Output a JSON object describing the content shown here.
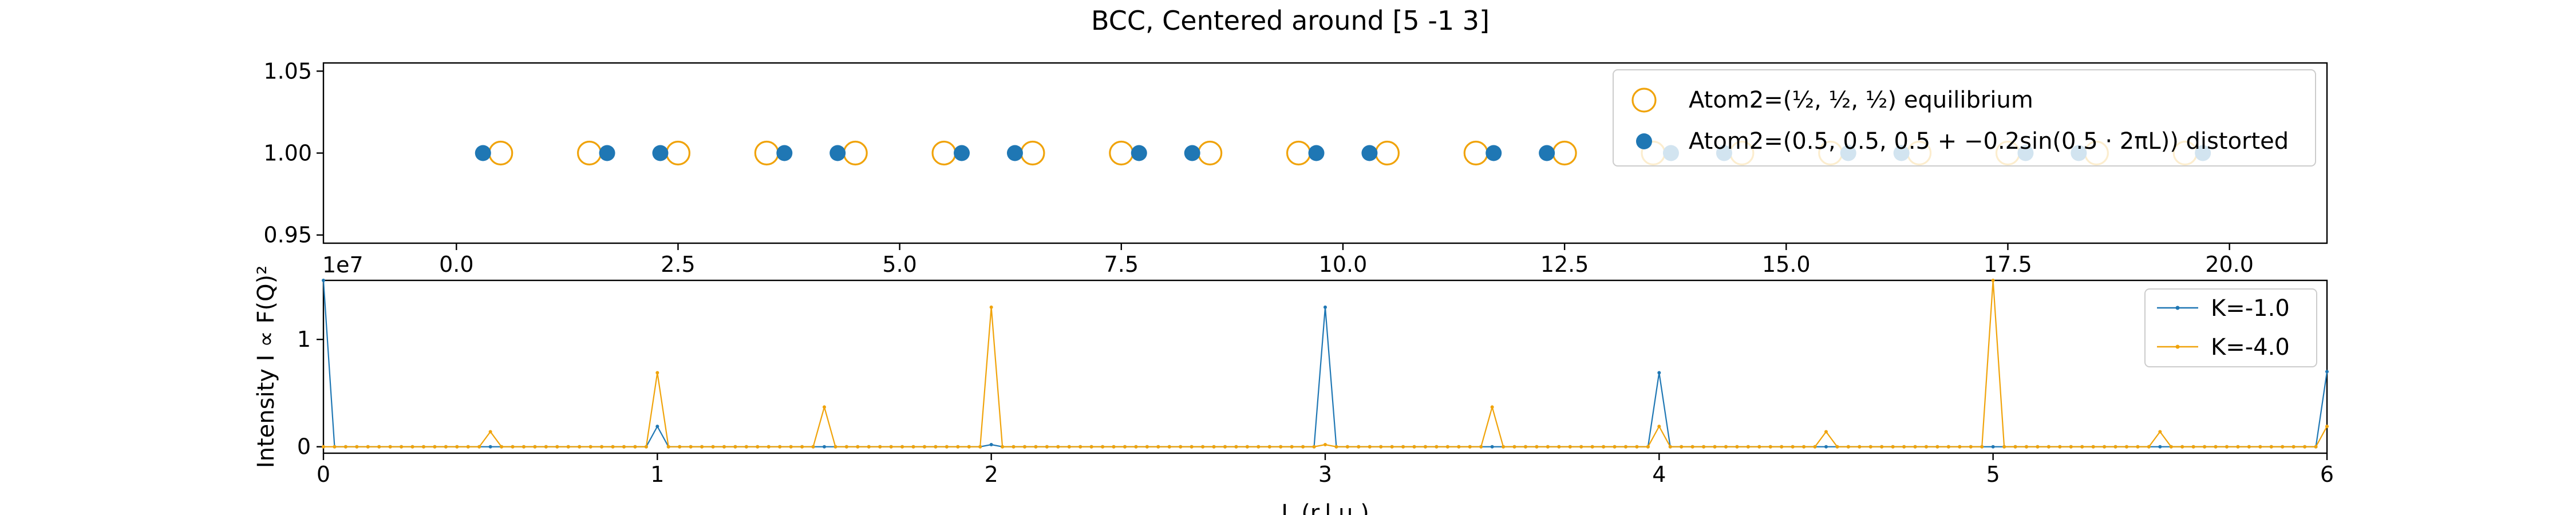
{
  "chart_data": [
    {
      "type": "scatter",
      "title": "BCC, Centered around [5 -1 3]",
      "xlabel": "",
      "ylabel": "",
      "xlim": [
        -1.5,
        21.1
      ],
      "ylim": [
        0.945,
        1.055
      ],
      "x_ticks": [
        0.0,
        2.5,
        5.0,
        7.5,
        10.0,
        12.5,
        15.0,
        17.5,
        20.0
      ],
      "x_tick_labels": [
        "0.0",
        "2.5",
        "5.0",
        "7.5",
        "10.0",
        "12.5",
        "15.0",
        "17.5",
        "20.0"
      ],
      "y_ticks": [
        0.95,
        1.0,
        1.05
      ],
      "y_tick_labels": [
        "0.95",
        "1.00",
        "1.05"
      ],
      "legend_position": "top-right",
      "series": [
        {
          "name": "Atom2=(½, ½, ½) equilibrium",
          "marker": "open-circle",
          "color": "#f0a30a",
          "x": [
            0.5,
            1.5,
            2.5,
            3.5,
            4.5,
            5.5,
            6.5,
            7.5,
            8.5,
            9.5,
            10.5,
            11.5,
            12.5,
            13.5,
            14.5,
            15.5,
            16.5,
            17.5,
            18.5,
            19.5
          ],
          "y": [
            1,
            1,
            1,
            1,
            1,
            1,
            1,
            1,
            1,
            1,
            1,
            1,
            1,
            1,
            1,
            1,
            1,
            1,
            1,
            1
          ]
        },
        {
          "name": "Atom2=(0.5, 0.5, 0.5 + −0.2sin(0.5 · 2πL)) distorted",
          "marker": "filled-circle",
          "color": "#1f77b4",
          "x": [
            0.3,
            1.7,
            2.3,
            3.7,
            4.3,
            5.7,
            6.3,
            7.7,
            8.3,
            9.7,
            10.3,
            11.7,
            12.3,
            13.7,
            14.3,
            15.7,
            16.3,
            17.7,
            18.3,
            19.7
          ],
          "y": [
            1,
            1,
            1,
            1,
            1,
            1,
            1,
            1,
            1,
            1,
            1,
            1,
            1,
            1,
            1,
            1,
            1,
            1,
            1,
            1
          ]
        }
      ]
    },
    {
      "type": "line",
      "title": "",
      "xlabel": "L (r.l.u.)",
      "ylabel": "Intensity I ∝ F(Q)²",
      "offset_text": "1e7",
      "xlim": [
        0,
        6
      ],
      "ylim": [
        -0.06,
        1.55
      ],
      "y_scale_note": "values in units of 1e7",
      "x_ticks": [
        0,
        1,
        2,
        3,
        4,
        5,
        6
      ],
      "x_tick_labels": [
        "0",
        "1",
        "2",
        "3",
        "4",
        "5",
        "6"
      ],
      "y_ticks": [
        0,
        1
      ],
      "y_tick_labels": [
        "0",
        "1"
      ],
      "legend_position": "top-right",
      "series": [
        {
          "name": "K=-1.0",
          "color": "#1f77b4",
          "peaks": [
            [
              0,
              1.55
            ],
            [
              0.5,
              0.0
            ],
            [
              1.0,
              0.19
            ],
            [
              1.5,
              0.0
            ],
            [
              2.0,
              0.02
            ],
            [
              2.5,
              0.0
            ],
            [
              3.0,
              1.3
            ],
            [
              3.5,
              0.0
            ],
            [
              4.0,
              0.69
            ],
            [
              4.5,
              0.0
            ],
            [
              5.0,
              0.0
            ],
            [
              5.5,
              0.0
            ],
            [
              6.0,
              0.7
            ]
          ]
        },
        {
          "name": "K=-4.0",
          "color": "#f0a30a",
          "peaks": [
            [
              0,
              0.0
            ],
            [
              0.5,
              0.14
            ],
            [
              1.0,
              0.69
            ],
            [
              1.5,
              0.37
            ],
            [
              2.0,
              1.3
            ],
            [
              2.5,
              0.0
            ],
            [
              3.0,
              0.02
            ],
            [
              3.5,
              0.37
            ],
            [
              4.0,
              0.19
            ],
            [
              4.5,
              0.14
            ],
            [
              5.0,
              1.55
            ],
            [
              5.5,
              0.14
            ],
            [
              6.0,
              0.19
            ]
          ]
        }
      ]
    }
  ]
}
